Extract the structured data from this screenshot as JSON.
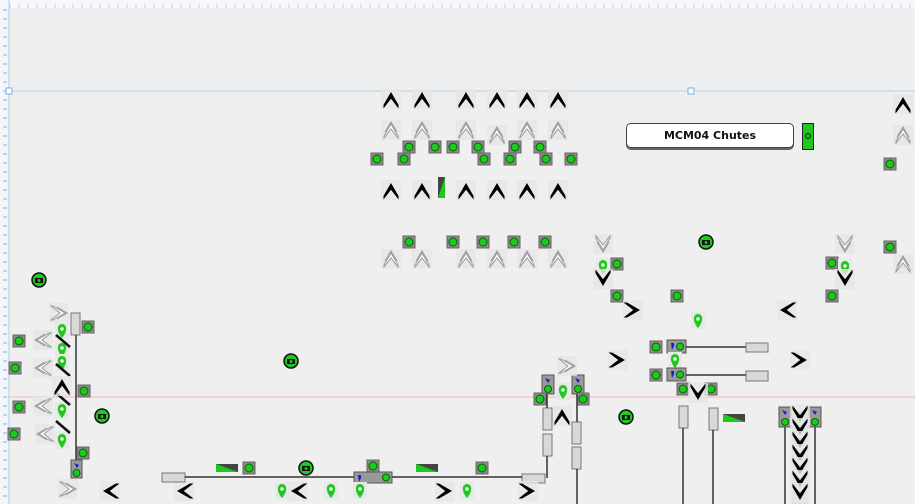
{
  "panel": {
    "mcm_button_label": "MCM04 Chutes",
    "mcm_status": "running"
  },
  "colors": {
    "status_ok": "#1ec81e",
    "status_blue": "#1020d0",
    "background": "#efefef",
    "guide_blue": "#a8d4ee",
    "guide_red": "#f0b8b0"
  },
  "icons": [
    "chevron-up-icon",
    "chevron-down-icon",
    "chevron-left-icon",
    "chevron-right-icon",
    "status-dot-icon",
    "camera-icon",
    "location-pin-icon",
    "photo-eye-icon",
    "roller-icon",
    "ramp-indicator-icon"
  ]
}
